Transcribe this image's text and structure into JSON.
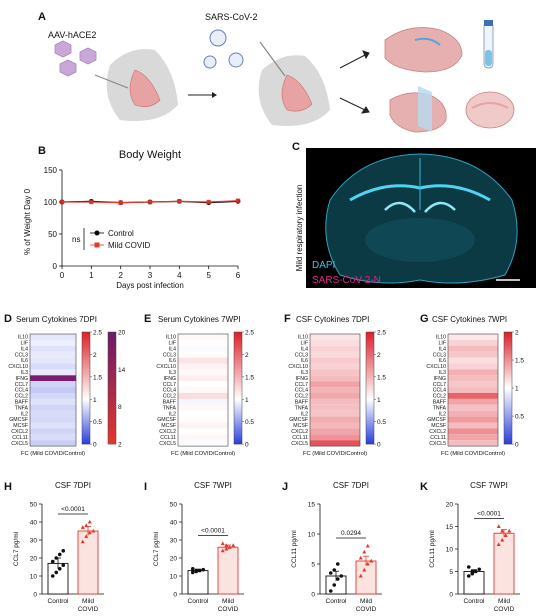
{
  "panel_a": {
    "label": "A",
    "vector_text": "AAV-hACE2",
    "virus_text": "SARS-CoV-2"
  },
  "panel_b": {
    "label": "B",
    "ns_text": "ns"
  },
  "panel_c": {
    "label": "C",
    "side_text": "Mild respiratory infection",
    "dapi_text": "DAPI",
    "n_text": "SARS-CoV-2-N",
    "colors": {
      "dapi": "#35c6e6",
      "n": "#e0288a",
      "bg": "#000000"
    }
  },
  "heatmap_rows": [
    "IL10",
    "LIF",
    "IL4",
    "CCL3",
    "IL6",
    "CXCL10",
    "IL3",
    "IFNG",
    "CCL7",
    "CCL4",
    "CCL2",
    "BAFF",
    "TNFA",
    "IL2",
    "GMCSF",
    "MCSF",
    "CXCL2",
    "CCL11",
    "CXCL5"
  ],
  "heatmap_xlabel": "FC (Mild COVID/Control)",
  "chart_data": [
    {
      "panel": "B",
      "type": "line",
      "title": "Body Weight",
      "xlabel": "Days post infection",
      "ylabel": "% of Weight Day 0",
      "x": [
        0,
        1,
        2,
        3,
        4,
        5,
        6
      ],
      "xlim": [
        0,
        6
      ],
      "ylim": [
        0,
        150
      ],
      "yticks": [
        0,
        50,
        100,
        150
      ],
      "legend_placement": "bottom-left",
      "series": [
        {
          "name": "Control",
          "values": [
            100,
            101,
            99,
            100,
            101,
            99,
            101
          ],
          "color": "#000000"
        },
        {
          "name": "Mild COVID",
          "values": [
            100,
            100,
            99,
            100,
            101,
            100,
            102
          ],
          "color": "#e4382c"
        }
      ]
    },
    {
      "panel": "D",
      "type": "heatmap",
      "title": "Serum Cytokines 7DPI",
      "xlabel": "FC (Mild COVID/Control)",
      "colorbar_ticks": [
        0,
        0.5,
        1.0,
        1.5,
        2.0,
        2.5
      ],
      "colorbar2_ticks": [
        2,
        8,
        14,
        20
      ],
      "values": [
        0.88,
        0.92,
        0.85,
        0.9,
        0.88,
        0.82,
        0.9,
        20,
        0.78,
        0.72,
        0.8,
        0.85,
        0.78,
        0.82,
        0.8,
        0.85,
        0.78,
        0.82,
        0.75
      ]
    },
    {
      "panel": "E",
      "type": "heatmap",
      "title": "Serum Cytokines 7WPI",
      "xlabel": "FC (Mild COVID/Control)",
      "colorbar_ticks": [
        0,
        0.5,
        1.0,
        1.5,
        2.0,
        2.5
      ],
      "values": [
        1.05,
        1.0,
        0.98,
        1.02,
        1.18,
        1.08,
        1.05,
        1.12,
        1.0,
        1.04,
        1.22,
        0.96,
        1.05,
        1.0,
        1.02,
        1.08,
        1.0,
        1.05,
        0.98
      ]
    },
    {
      "panel": "F",
      "type": "heatmap",
      "title": "CSF Cytokines 7DPI",
      "xlabel": "FC (Mild COVID/Control)",
      "colorbar_ticks": [
        0,
        0.5,
        1.0,
        1.5,
        2.0,
        2.5
      ],
      "values": [
        1.18,
        1.22,
        1.3,
        1.25,
        1.35,
        1.3,
        1.4,
        1.45,
        1.62,
        1.5,
        1.58,
        1.45,
        1.42,
        1.4,
        1.55,
        1.48,
        1.6,
        1.72,
        2.15
      ]
    },
    {
      "panel": "G",
      "type": "heatmap",
      "title": "CSF Cytokines 7WPI",
      "xlabel": "FC (Mild COVID/Control)",
      "colorbar_ticks": [
        0,
        0.5,
        1.0,
        1.5,
        2.0
      ],
      "values": [
        1.1,
        1.2,
        1.3,
        1.25,
        1.15,
        1.2,
        1.35,
        1.3,
        1.25,
        1.3,
        1.7,
        1.4,
        1.28,
        1.35,
        1.45,
        1.3,
        1.5,
        1.4,
        1.3
      ]
    },
    {
      "panel": "H",
      "type": "bar",
      "title": "CSF 7DPI",
      "ylabel": "CCL7 pg/ml",
      "categories": [
        "Control",
        "Mild COVID"
      ],
      "values": [
        17,
        35
      ],
      "errors": [
        3,
        2.5
      ],
      "points": [
        [
          10,
          12,
          14,
          16,
          18,
          20,
          22,
          24
        ],
        [
          29,
          32,
          34,
          35,
          37,
          38,
          40
        ]
      ],
      "ylim": [
        0,
        50
      ],
      "yticks": [
        0,
        10,
        20,
        30,
        40,
        50
      ],
      "significance": "<0.0001"
    },
    {
      "panel": "I",
      "type": "bar",
      "title": "CSF 7WPI",
      "ylabel": "CCL7 pg/ml",
      "categories": [
        "Control",
        "Mild COVID"
      ],
      "values": [
        13,
        26
      ],
      "errors": [
        0.8,
        1.2
      ],
      "points": [
        [
          12,
          12.5,
          13,
          13.5,
          14,
          13
        ],
        [
          24,
          25,
          26,
          27,
          28,
          27
        ]
      ],
      "ylim": [
        0,
        50
      ],
      "yticks": [
        0,
        10,
        20,
        30,
        40,
        50
      ],
      "significance": "<0.0001"
    },
    {
      "panel": "J",
      "type": "bar",
      "title": "CSF 7DPI",
      "ylabel": "CCL11 pg/ml",
      "categories": [
        "Control",
        "Mild COVID"
      ],
      "values": [
        3,
        5.5
      ],
      "errors": [
        0.8,
        0.8
      ],
      "points": [
        [
          0.5,
          1.5,
          2.5,
          3,
          3.5,
          4,
          5
        ],
        [
          3,
          4,
          5,
          5.5,
          6,
          7,
          8
        ]
      ],
      "ylim": [
        0,
        15
      ],
      "yticks": [
        0,
        5,
        10,
        15
      ],
      "significance": "0.0294"
    },
    {
      "panel": "K",
      "type": "bar",
      "title": "CSF 7WPI",
      "ylabel": "CCL11 pg/ml",
      "categories": [
        "Control",
        "Mild COVID"
      ],
      "values": [
        5,
        13.5
      ],
      "errors": [
        0.4,
        0.8
      ],
      "points": [
        [
          4,
          4.5,
          5,
          5.5,
          6,
          5
        ],
        [
          11,
          12,
          13,
          14,
          15,
          14
        ]
      ],
      "ylim": [
        0,
        20
      ],
      "yticks": [
        0,
        5,
        10,
        15,
        20
      ],
      "significance": "<0.0001"
    }
  ]
}
